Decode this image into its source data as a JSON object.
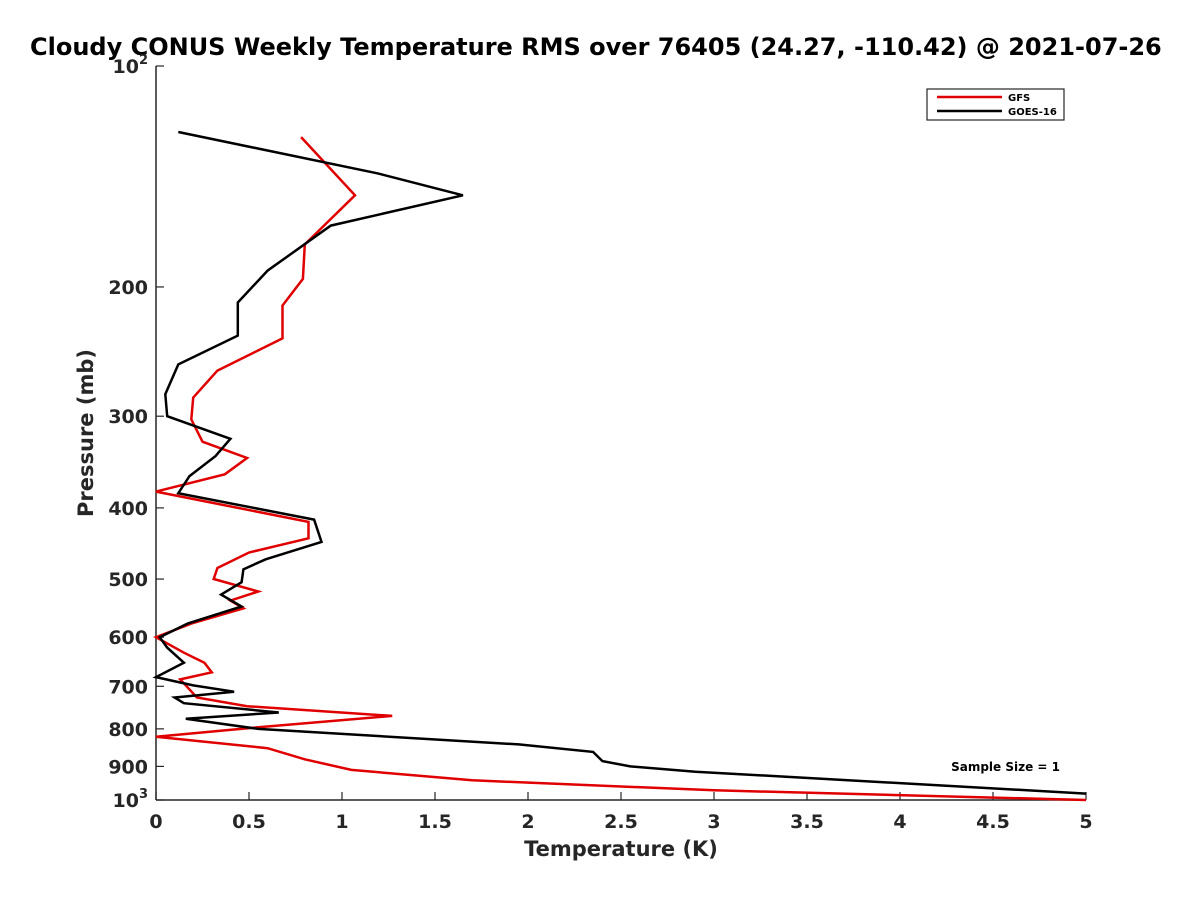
{
  "chart_data": {
    "type": "line",
    "title": "Cloudy CONUS Weekly Temperature RMS over 76405 (24.27, -110.42) @ 2021-07-26",
    "xlabel": "Temperature (K)",
    "ylabel": "Pressure (mb)",
    "xlim": [
      0,
      5
    ],
    "ylim": [
      100,
      1000
    ],
    "yscale": "log",
    "y_reversed": true,
    "grid": false,
    "legend_position": "top-right",
    "x_ticks": [
      0,
      0.5,
      1,
      1.5,
      2,
      2.5,
      3,
      3.5,
      4,
      4.5,
      5
    ],
    "x_tick_labels": [
      "0",
      "0.5",
      "1",
      "1.5",
      "2",
      "2.5",
      "3",
      "3.5",
      "4",
      "4.5",
      "5"
    ],
    "y_ticks": [
      {
        "value": 100,
        "label": "10",
        "exponent": "2"
      },
      {
        "value": 200,
        "label": "200"
      },
      {
        "value": 300,
        "label": "300"
      },
      {
        "value": 400,
        "label": "400"
      },
      {
        "value": 500,
        "label": "500"
      },
      {
        "value": 600,
        "label": "600"
      },
      {
        "value": 700,
        "label": "700"
      },
      {
        "value": 800,
        "label": "800"
      },
      {
        "value": 900,
        "label": "900"
      },
      {
        "value": 1000,
        "label": "10",
        "exponent": "3"
      }
    ],
    "annotation": "Sample Size = 1",
    "series": [
      {
        "name": "GFS",
        "color": "#e00000",
        "points": [
          [
            0.78,
            125
          ],
          [
            1.07,
            150
          ],
          [
            0.8,
            175
          ],
          [
            0.79,
            195
          ],
          [
            0.68,
            212
          ],
          [
            0.68,
            235
          ],
          [
            0.33,
            260
          ],
          [
            0.2,
            283
          ],
          [
            0.19,
            303
          ],
          [
            0.25,
            325
          ],
          [
            0.49,
            342
          ],
          [
            0.37,
            360
          ],
          [
            0.0,
            380
          ],
          [
            0.82,
            418
          ],
          [
            0.82,
            440
          ],
          [
            0.5,
            460
          ],
          [
            0.33,
            483
          ],
          [
            0.31,
            500
          ],
          [
            0.55,
            520
          ],
          [
            0.4,
            535
          ],
          [
            0.47,
            548
          ],
          [
            0.19,
            575
          ],
          [
            0.0,
            600
          ],
          [
            0.15,
            630
          ],
          [
            0.26,
            650
          ],
          [
            0.3,
            670
          ],
          [
            0.13,
            685
          ],
          [
            0.22,
            725
          ],
          [
            0.49,
            745
          ],
          [
            1.27,
            768
          ],
          [
            0.5,
            798
          ],
          [
            0.0,
            820
          ],
          [
            0.6,
            850
          ],
          [
            0.8,
            880
          ],
          [
            1.05,
            910
          ],
          [
            1.7,
            940
          ],
          [
            3.0,
            970
          ],
          [
            5.0,
            1000
          ]
        ]
      },
      {
        "name": "GOES-16",
        "color": "#000000",
        "points": [
          [
            0.12,
            123
          ],
          [
            1.19,
            140
          ],
          [
            1.65,
            150
          ],
          [
            0.94,
            165
          ],
          [
            0.6,
            190
          ],
          [
            0.44,
            210
          ],
          [
            0.44,
            233
          ],
          [
            0.12,
            255
          ],
          [
            0.05,
            280
          ],
          [
            0.06,
            300
          ],
          [
            0.4,
            322
          ],
          [
            0.32,
            340
          ],
          [
            0.18,
            362
          ],
          [
            0.12,
            382
          ],
          [
            0.85,
            415
          ],
          [
            0.89,
            445
          ],
          [
            0.59,
            470
          ],
          [
            0.47,
            485
          ],
          [
            0.46,
            505
          ],
          [
            0.35,
            525
          ],
          [
            0.46,
            545
          ],
          [
            0.17,
            575
          ],
          [
            0.02,
            600
          ],
          [
            0.06,
            620
          ],
          [
            0.15,
            650
          ],
          [
            0.0,
            680
          ],
          [
            0.2,
            698
          ],
          [
            0.42,
            712
          ],
          [
            0.1,
            725
          ],
          [
            0.15,
            738
          ],
          [
            0.66,
            760
          ],
          [
            0.16,
            775
          ],
          [
            0.55,
            800
          ],
          [
            1.95,
            840
          ],
          [
            2.35,
            860
          ],
          [
            2.4,
            885
          ],
          [
            2.55,
            900
          ],
          [
            2.9,
            915
          ],
          [
            3.4,
            930
          ],
          [
            5.0,
            980
          ]
        ]
      }
    ]
  }
}
